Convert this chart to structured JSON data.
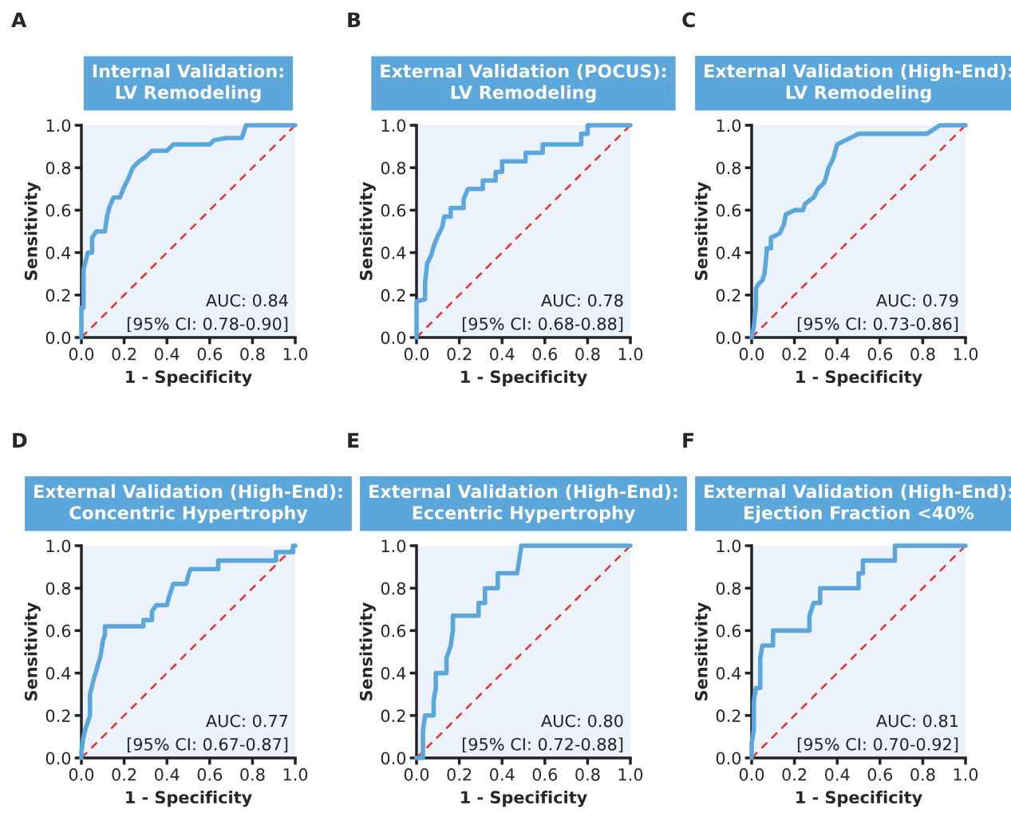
{
  "chart_data": [
    {
      "type": "line",
      "title": "Internal Validation:\nLV Remodeling",
      "xlabel": "1 - Specificity",
      "ylabel": "Sensitivity",
      "xlim": [
        0,
        1
      ],
      "ylim": [
        0,
        1
      ],
      "xticks": [
        {
          "value": 0,
          "label": "0.0"
        },
        {
          "value": 0.2,
          "label": "0.2"
        },
        {
          "value": 0.4,
          "label": "0.4"
        },
        {
          "value": 0.6,
          "label": "0.6"
        },
        {
          "value": 0.8,
          "label": "0.8"
        },
        {
          "value": 1,
          "label": "1.0"
        }
      ],
      "yticks": [
        {
          "value": 0,
          "label": "0.0"
        },
        {
          "value": 0.2,
          "label": "0.2"
        },
        {
          "value": 0.4,
          "label": "0.4"
        },
        {
          "value": 0.6,
          "label": "0.6"
        },
        {
          "value": 0.8,
          "label": "0.8"
        },
        {
          "value": 1,
          "label": "1.0"
        }
      ],
      "grid": false,
      "legend": false,
      "annotations": [
        "A",
        "AUC: 0.84",
        "[95% CI: 0.78-0.90]"
      ],
      "series": [
        {
          "color": "#5ba7dc",
          "line_style": "solid",
          "x": [
            0,
            0,
            0.01,
            0.01,
            0.02,
            0.03,
            0.05,
            0.05,
            0.07,
            0.11,
            0.12,
            0.13,
            0.15,
            0.18,
            0.2,
            0.22,
            0.24,
            0.27,
            0.3,
            0.33,
            0.4,
            0.43,
            0.6,
            0.62,
            0.68,
            0.75,
            0.77,
            1
          ],
          "values": [
            0,
            0.14,
            0.14,
            0.32,
            0.36,
            0.4,
            0.4,
            0.47,
            0.5,
            0.5,
            0.57,
            0.61,
            0.66,
            0.66,
            0.71,
            0.75,
            0.8,
            0.83,
            0.85,
            0.88,
            0.88,
            0.91,
            0.91,
            0.93,
            0.94,
            0.94,
            1,
            1
          ]
        },
        {
          "color": "#e8302a",
          "line_style": "dashed",
          "x": [
            0,
            1
          ],
          "values": [
            0,
            1
          ]
        }
      ]
    },
    {
      "type": "line",
      "title": "External Validation (POCUS):\nLV Remodeling",
      "xlabel": "1 - Specificity",
      "ylabel": "Sensitivity",
      "xlim": [
        0,
        1
      ],
      "ylim": [
        0,
        1
      ],
      "xticks": [
        {
          "value": 0,
          "label": "0.0"
        },
        {
          "value": 0.2,
          "label": "0.2"
        },
        {
          "value": 0.4,
          "label": "0.4"
        },
        {
          "value": 0.6,
          "label": "0.6"
        },
        {
          "value": 0.8,
          "label": "0.8"
        },
        {
          "value": 1,
          "label": "1.0"
        }
      ],
      "yticks": [
        {
          "value": 0,
          "label": "0.0"
        },
        {
          "value": 0.2,
          "label": "0.2"
        },
        {
          "value": 0.4,
          "label": "0.4"
        },
        {
          "value": 0.6,
          "label": "0.6"
        },
        {
          "value": 0.8,
          "label": "0.8"
        },
        {
          "value": 1,
          "label": "1.0"
        }
      ],
      "grid": false,
      "legend": false,
      "annotations": [
        "B",
        "AUC: 0.78",
        "[95% CI: 0.68-0.88]"
      ],
      "series": [
        {
          "color": "#5ba7dc",
          "line_style": "solid",
          "x": [
            0,
            0,
            0.04,
            0.04,
            0.05,
            0.07,
            0.08,
            0.1,
            0.12,
            0.13,
            0.16,
            0.16,
            0.22,
            0.22,
            0.24,
            0.31,
            0.31,
            0.37,
            0.37,
            0.4,
            0.4,
            0.51,
            0.51,
            0.59,
            0.59,
            0.77,
            0.77,
            0.8,
            0.8,
            1
          ],
          "values": [
            0,
            0.17,
            0.18,
            0.26,
            0.35,
            0.39,
            0.43,
            0.48,
            0.52,
            0.57,
            0.57,
            0.61,
            0.61,
            0.65,
            0.7,
            0.7,
            0.74,
            0.74,
            0.78,
            0.78,
            0.83,
            0.83,
            0.87,
            0.87,
            0.91,
            0.91,
            0.96,
            0.96,
            1,
            1
          ]
        },
        {
          "color": "#e8302a",
          "line_style": "dashed",
          "x": [
            0,
            1
          ],
          "values": [
            0,
            1
          ]
        }
      ]
    },
    {
      "type": "line",
      "title": "External Validation (High-End):\nLV Remodeling",
      "xlabel": "1 - Specificity",
      "ylabel": "Sensitivity",
      "xlim": [
        0,
        1
      ],
      "ylim": [
        0,
        1
      ],
      "xticks": [
        {
          "value": 0,
          "label": "0.0"
        },
        {
          "value": 0.2,
          "label": "0.2"
        },
        {
          "value": 0.4,
          "label": "0.4"
        },
        {
          "value": 0.6,
          "label": "0.6"
        },
        {
          "value": 0.8,
          "label": "0.8"
        },
        {
          "value": 1,
          "label": "1.0"
        }
      ],
      "yticks": [
        {
          "value": 0,
          "label": "0.0"
        },
        {
          "value": 0.2,
          "label": "0.2"
        },
        {
          "value": 0.4,
          "label": "0.4"
        },
        {
          "value": 0.6,
          "label": "0.6"
        },
        {
          "value": 0.8,
          "label": "0.8"
        },
        {
          "value": 1,
          "label": "1.0"
        }
      ],
      "grid": false,
      "legend": false,
      "annotations": [
        "C",
        "AUC: 0.79",
        "[95% CI: 0.73-0.86]"
      ],
      "series": [
        {
          "color": "#5ba7dc",
          "line_style": "solid",
          "x": [
            0,
            0.01,
            0.02,
            0.02,
            0.03,
            0.05,
            0.06,
            0.07,
            0.07,
            0.09,
            0.09,
            0.13,
            0.15,
            0.16,
            0.2,
            0.24,
            0.25,
            0.29,
            0.31,
            0.34,
            0.36,
            0.38,
            0.4,
            0.46,
            0.5,
            0.82,
            0.85,
            0.88,
            1
          ],
          "values": [
            0,
            0.05,
            0.15,
            0.23,
            0.25,
            0.27,
            0.3,
            0.4,
            0.42,
            0.42,
            0.47,
            0.49,
            0.53,
            0.58,
            0.6,
            0.6,
            0.63,
            0.66,
            0.7,
            0.73,
            0.8,
            0.84,
            0.91,
            0.94,
            0.96,
            0.96,
            0.98,
            1,
            1
          ]
        },
        {
          "color": "#e8302a",
          "line_style": "dashed",
          "x": [
            0,
            1
          ],
          "values": [
            0,
            1
          ]
        }
      ]
    },
    {
      "type": "line",
      "title": "External Validation (High-End):\nConcentric Hypertrophy",
      "xlabel": "1 - Specificity",
      "ylabel": "Sensitivity",
      "xlim": [
        0,
        1
      ],
      "ylim": [
        0,
        1
      ],
      "xticks": [
        {
          "value": 0,
          "label": "0.0"
        },
        {
          "value": 0.2,
          "label": "0.2"
        },
        {
          "value": 0.4,
          "label": "0.4"
        },
        {
          "value": 0.6,
          "label": "0.6"
        },
        {
          "value": 0.8,
          "label": "0.8"
        },
        {
          "value": 1,
          "label": "1.0"
        }
      ],
      "yticks": [
        {
          "value": 0,
          "label": "0.0"
        },
        {
          "value": 0.2,
          "label": "0.2"
        },
        {
          "value": 0.4,
          "label": "0.4"
        },
        {
          "value": 0.6,
          "label": "0.6"
        },
        {
          "value": 0.8,
          "label": "0.8"
        },
        {
          "value": 1,
          "label": "1.0"
        }
      ],
      "grid": false,
      "legend": false,
      "annotations": [
        "D",
        "AUC: 0.77",
        "[95% CI: 0.67-0.87]"
      ],
      "series": [
        {
          "color": "#5ba7dc",
          "line_style": "solid",
          "x": [
            0,
            0,
            0.01,
            0.02,
            0.03,
            0.04,
            0.04,
            0.05,
            0.06,
            0.07,
            0.08,
            0.09,
            0.1,
            0.11,
            0.11,
            0.29,
            0.29,
            0.33,
            0.33,
            0.35,
            0.4,
            0.41,
            0.43,
            0.49,
            0.5,
            0.51,
            0.64,
            0.64,
            0.91,
            0.91,
            0.99,
            0.99,
            1
          ],
          "values": [
            0,
            0.03,
            0.1,
            0.14,
            0.17,
            0.2,
            0.3,
            0.34,
            0.38,
            0.41,
            0.45,
            0.48,
            0.55,
            0.58,
            0.62,
            0.62,
            0.65,
            0.65,
            0.69,
            0.72,
            0.72,
            0.76,
            0.82,
            0.82,
            0.86,
            0.89,
            0.89,
            0.93,
            0.93,
            0.97,
            0.97,
            1,
            1
          ]
        },
        {
          "color": "#e8302a",
          "line_style": "dashed",
          "x": [
            0,
            1
          ],
          "values": [
            0,
            1
          ]
        }
      ]
    },
    {
      "type": "line",
      "title": "External Validation (High-End):\nEccentric Hypertrophy",
      "xlabel": "1 - Specificity",
      "ylabel": "Sensitivity",
      "xlim": [
        0,
        1
      ],
      "ylim": [
        0,
        1
      ],
      "xticks": [
        {
          "value": 0,
          "label": "0.0"
        },
        {
          "value": 0.2,
          "label": "0.2"
        },
        {
          "value": 0.4,
          "label": "0.4"
        },
        {
          "value": 0.6,
          "label": "0.6"
        },
        {
          "value": 0.8,
          "label": "0.8"
        },
        {
          "value": 1,
          "label": "1.0"
        }
      ],
      "yticks": [
        {
          "value": 0,
          "label": "0.0"
        },
        {
          "value": 0.2,
          "label": "0.2"
        },
        {
          "value": 0.4,
          "label": "0.4"
        },
        {
          "value": 0.6,
          "label": "0.6"
        },
        {
          "value": 0.8,
          "label": "0.8"
        },
        {
          "value": 1,
          "label": "1.0"
        }
      ],
      "grid": false,
      "legend": false,
      "annotations": [
        "E",
        "AUC: 0.80",
        "[95% CI: 0.72-0.88]"
      ],
      "series": [
        {
          "color": "#5ba7dc",
          "line_style": "solid",
          "x": [
            0,
            0.03,
            0.03,
            0.03,
            0.04,
            0.08,
            0.08,
            0.09,
            0.09,
            0.14,
            0.14,
            0.16,
            0.17,
            0.17,
            0.29,
            0.29,
            0.32,
            0.32,
            0.38,
            0.38,
            0.47,
            0.48,
            0.49,
            1
          ],
          "values": [
            0,
            0,
            0.07,
            0.13,
            0.2,
            0.2,
            0.27,
            0.33,
            0.4,
            0.4,
            0.47,
            0.53,
            0.6,
            0.67,
            0.67,
            0.73,
            0.73,
            0.8,
            0.8,
            0.87,
            0.87,
            0.93,
            1,
            1
          ]
        },
        {
          "color": "#e8302a",
          "line_style": "dashed",
          "x": [
            0,
            1
          ],
          "values": [
            0,
            1
          ]
        }
      ]
    },
    {
      "type": "line",
      "title": "External Validation (High-End):\nEjection Fraction <40%",
      "xlabel": "1 - Specificity",
      "ylabel": "Sensitivity",
      "xlim": [
        0,
        1
      ],
      "ylim": [
        0,
        1
      ],
      "xticks": [
        {
          "value": 0,
          "label": "0.0"
        },
        {
          "value": 0.2,
          "label": "0.2"
        },
        {
          "value": 0.4,
          "label": "0.4"
        },
        {
          "value": 0.6,
          "label": "0.6"
        },
        {
          "value": 0.8,
          "label": "0.8"
        },
        {
          "value": 1,
          "label": "1.0"
        }
      ],
      "yticks": [
        {
          "value": 0,
          "label": "0.0"
        },
        {
          "value": 0.2,
          "label": "0.2"
        },
        {
          "value": 0.4,
          "label": "0.4"
        },
        {
          "value": 0.6,
          "label": "0.6"
        },
        {
          "value": 0.8,
          "label": "0.8"
        },
        {
          "value": 1,
          "label": "1.0"
        }
      ],
      "grid": false,
      "legend": false,
      "annotations": [
        "F",
        "AUC: 0.81",
        "[95% CI: 0.70-0.92]"
      ],
      "series": [
        {
          "color": "#5ba7dc",
          "line_style": "solid",
          "x": [
            0,
            0,
            0.01,
            0.01,
            0.01,
            0.02,
            0.04,
            0.04,
            0.04,
            0.05,
            0.1,
            0.1,
            0.27,
            0.27,
            0.29,
            0.32,
            0.32,
            0.5,
            0.5,
            0.52,
            0.52,
            0.67,
            0.67,
            1
          ],
          "values": [
            0,
            0.07,
            0.13,
            0.2,
            0.27,
            0.33,
            0.33,
            0.4,
            0.47,
            0.53,
            0.53,
            0.6,
            0.6,
            0.67,
            0.73,
            0.73,
            0.8,
            0.8,
            0.87,
            0.87,
            0.93,
            0.93,
            1,
            1
          ]
        },
        {
          "color": "#e8302a",
          "line_style": "dashed",
          "x": [
            0,
            1
          ],
          "values": [
            0,
            1
          ]
        }
      ]
    }
  ]
}
